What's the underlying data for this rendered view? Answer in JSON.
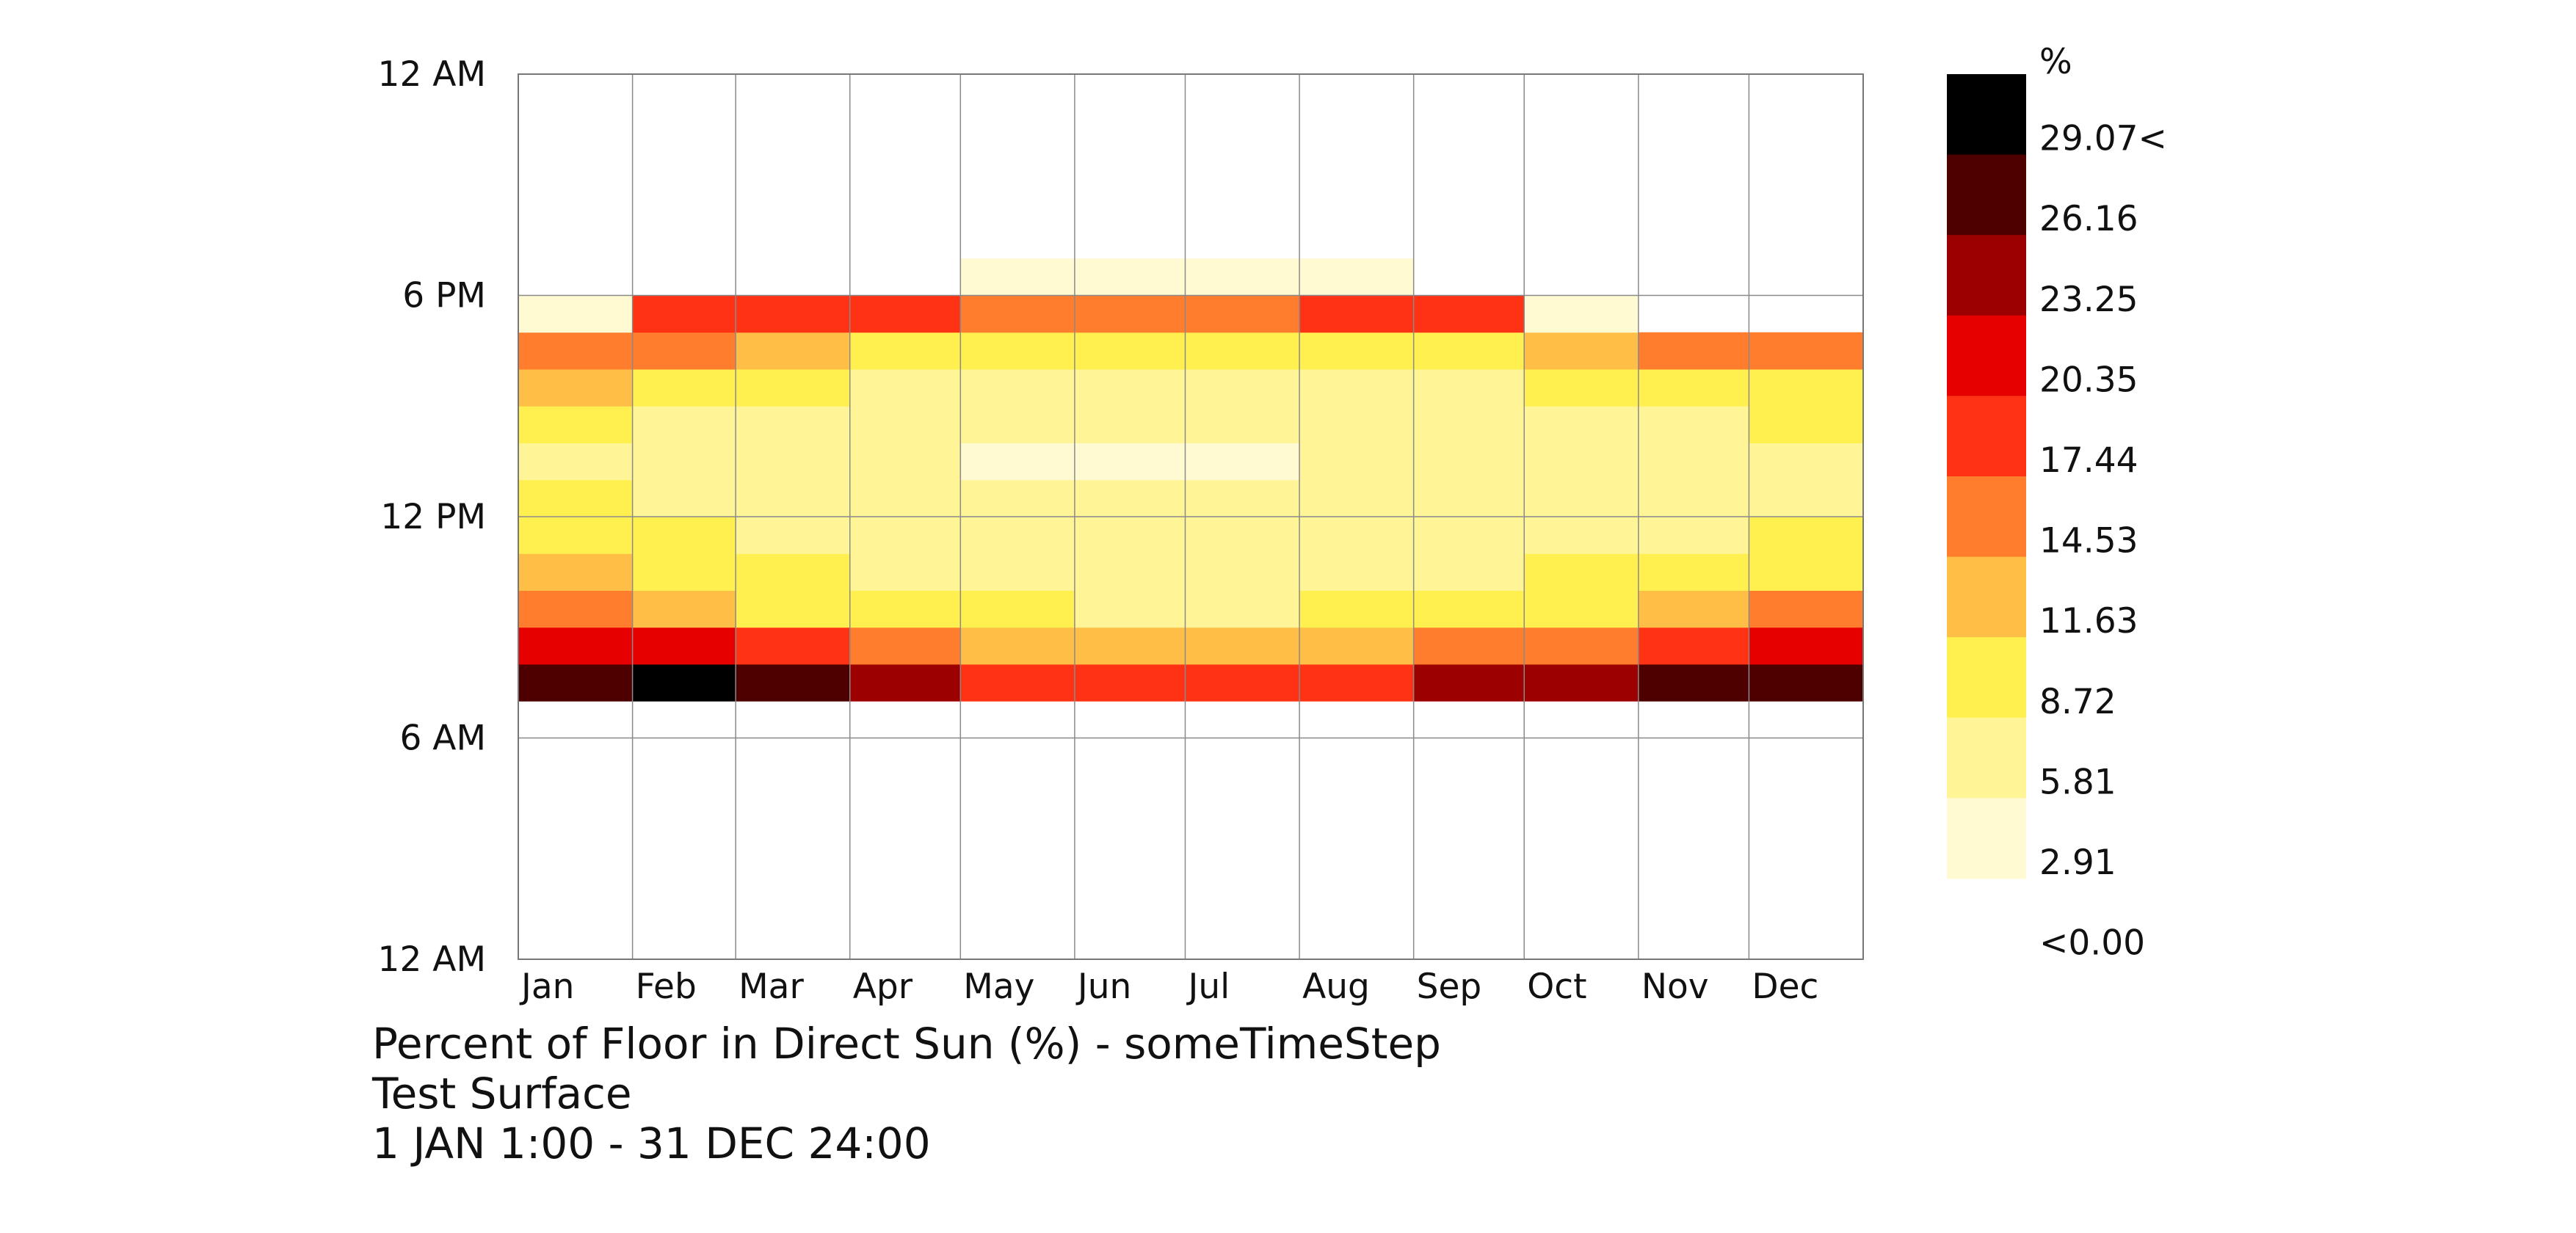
{
  "chart_data": {
    "type": "heatmap",
    "title": "Percent of Floor in Direct Sun (%) - someTimeStep",
    "subtitle": "Test Surface",
    "period": "1 JAN 1:00 - 31 DEC 24:00",
    "x_tick_labels": [
      "Jan",
      "Feb",
      "Mar",
      "Apr",
      "May",
      "Jun",
      "Jul",
      "Aug",
      "Sep",
      "Oct",
      "Nov",
      "Dec"
    ],
    "y_tick_labels": [
      "12 AM",
      "6 PM",
      "12 PM",
      "6 AM",
      "12 AM"
    ],
    "x_unit": "month",
    "y_unit": "hour of day",
    "legend": {
      "unit": "%",
      "labels": [
        "29.07<",
        "26.16",
        "23.25",
        "20.35",
        "17.44",
        "14.53",
        "11.63",
        "8.72",
        "5.81",
        "2.91",
        "<0.00"
      ],
      "colors": [
        "#000000",
        "#4e0000",
        "#9c0000",
        "#e60000",
        "#ff3214",
        "#ff7d2d",
        "#ffbe46",
        "#fff050",
        "#fff596",
        "#fffad2"
      ]
    },
    "hours": [
      7,
      8,
      9,
      10,
      11,
      12,
      13,
      14,
      15,
      16,
      17,
      18,
      19
    ],
    "months": [
      "Jan",
      "Feb",
      "Mar",
      "Apr",
      "May",
      "Jun",
      "Jul",
      "Aug",
      "Sep",
      "Oct",
      "Nov",
      "Dec"
    ],
    "values_by_hour": [
      [
        25,
        27,
        26,
        21,
        17,
        15,
        15,
        17,
        21,
        22,
        25,
        26
      ],
      [
        19,
        18,
        15,
        12,
        9,
        9,
        9,
        11,
        12,
        13,
        15,
        18
      ],
      [
        13,
        10,
        8,
        7,
        6,
        5,
        5,
        6,
        7,
        8,
        9,
        12
      ],
      [
        9,
        8,
        6,
        5,
        5,
        4,
        4,
        4,
        5,
        6,
        7,
        8
      ],
      [
        7,
        6,
        5,
        4,
        4,
        4,
        4,
        4,
        4,
        5,
        5,
        6
      ],
      [
        6,
        5,
        4,
        3,
        3,
        3,
        3,
        4,
        4,
        4,
        4,
        5
      ],
      [
        5,
        4,
        3,
        3,
        2,
        2,
        2,
        3,
        3,
        3,
        3,
        4
      ],
      [
        6,
        4,
        3,
        3,
        3,
        3,
        3,
        4,
        4,
        5,
        5,
        6
      ],
      [
        9,
        7,
        6,
        5,
        5,
        4,
        4,
        5,
        5,
        6,
        7,
        8
      ],
      [
        14,
        13,
        9,
        8,
        7,
        6,
        6,
        7,
        8,
        10,
        13,
        14
      ],
      [
        2,
        17,
        16,
        15,
        13,
        12,
        12,
        15,
        17,
        2,
        0,
        0
      ],
      [
        0,
        0,
        0,
        0,
        1,
        2,
        2,
        1,
        0,
        0,
        0,
        0
      ],
      [
        0,
        0,
        0,
        0,
        0,
        0,
        0,
        0,
        0,
        0,
        0,
        0
      ]
    ],
    "xlim": [
      "Jan",
      "Dec"
    ],
    "ylim": [
      0,
      24
    ],
    "grid": true,
    "legend_position": "right"
  }
}
